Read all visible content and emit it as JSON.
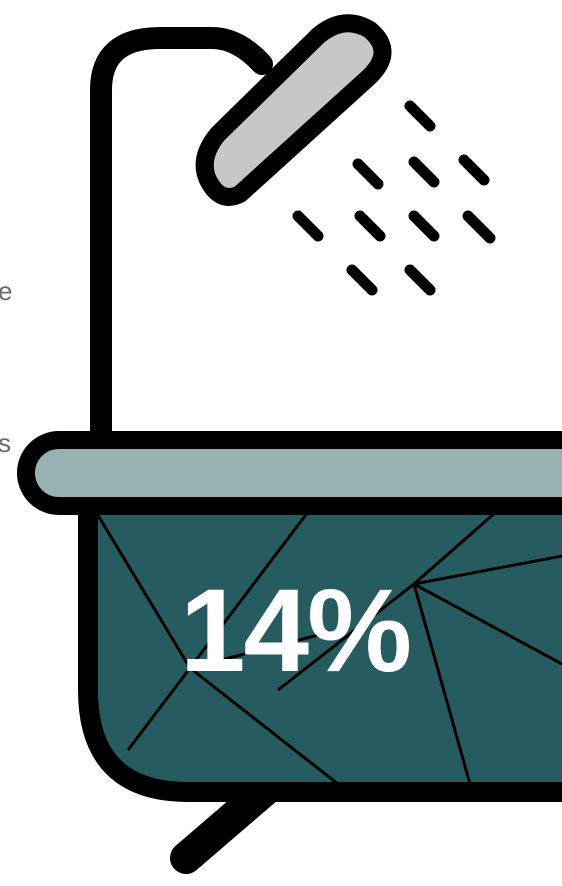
{
  "side_text": {
    "fragment_1": "e",
    "fragment_2": "s"
  },
  "bathtub": {
    "percentage_label": "14%",
    "percentage_value": 14
  },
  "colors": {
    "tub_fill": "#265c5f",
    "rim_fill": "#98b2b3",
    "shower_head_fill": "#c7c7c7",
    "outline": "#000000",
    "label_text": "#ffffff",
    "side_text": "#6b6b6b"
  },
  "icons": [
    "shower-head-icon",
    "water-drops-icon",
    "bathtub-icon",
    "tub-foot-icon"
  ]
}
